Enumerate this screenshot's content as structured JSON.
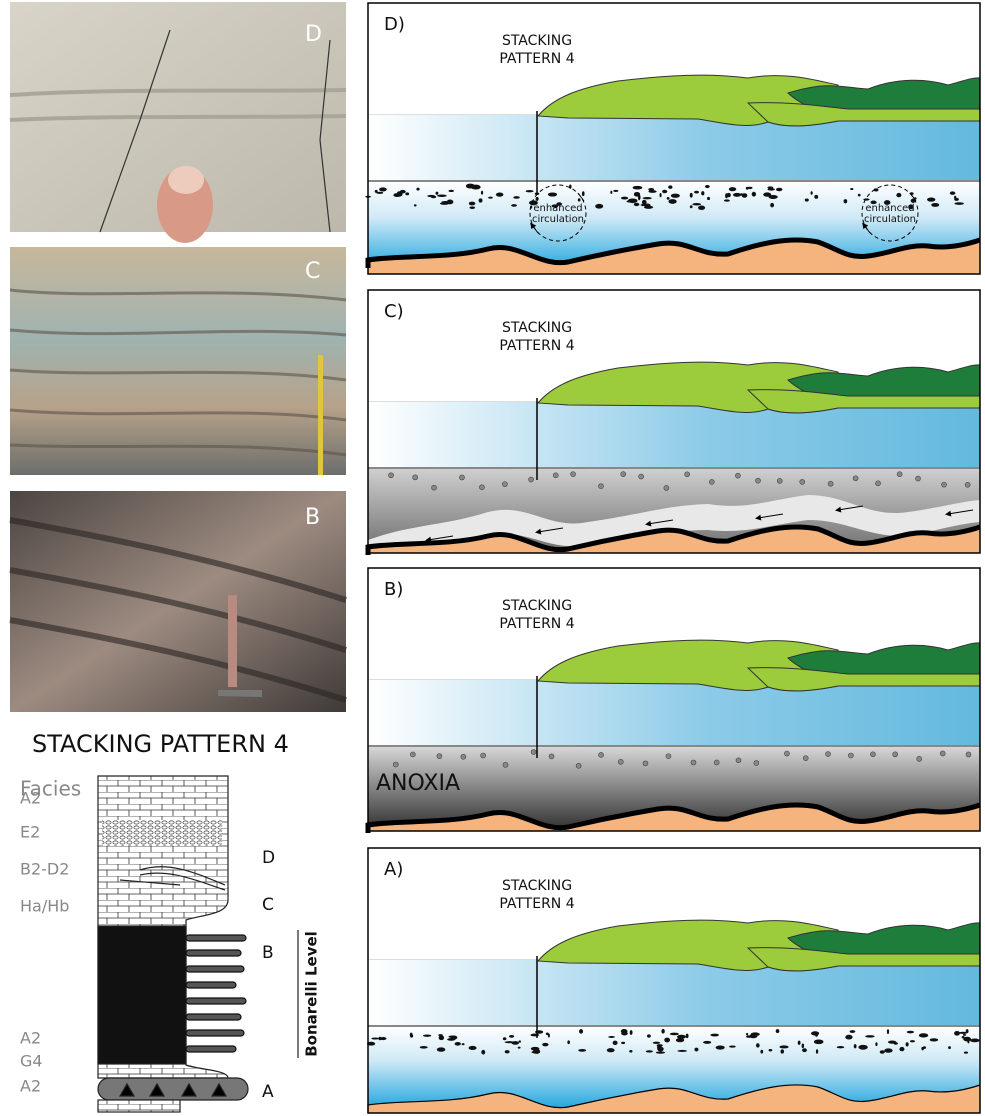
{
  "photos": [
    {
      "label": "D"
    },
    {
      "label": "C"
    },
    {
      "label": "B"
    }
  ],
  "column": {
    "title": "STACKING PATTERN 4",
    "facies_heading": "Facies",
    "facies": [
      "A2",
      "E2",
      "B2-D2",
      "Ha/Hb",
      "A2",
      "G4",
      "A2"
    ],
    "levels": [
      "D",
      "C",
      "B",
      "A"
    ],
    "bracket_label": "Bonarelli Level"
  },
  "panels": [
    {
      "label": "D)",
      "stacking": [
        "STACKING",
        "PATTERN 4"
      ],
      "circulation": [
        [
          "enhanced",
          "circulation"
        ],
        [
          "enhanced",
          "circulation"
        ]
      ]
    },
    {
      "label": "C)",
      "stacking": [
        "STACKING",
        "PATTERN 4"
      ]
    },
    {
      "label": "B)",
      "stacking": [
        "STACKING",
        "PATTERN 4"
      ],
      "anoxia": "ANOXIA"
    },
    {
      "label": "A)",
      "stacking": [
        "STACKING",
        "PATTERN 4"
      ]
    }
  ]
}
